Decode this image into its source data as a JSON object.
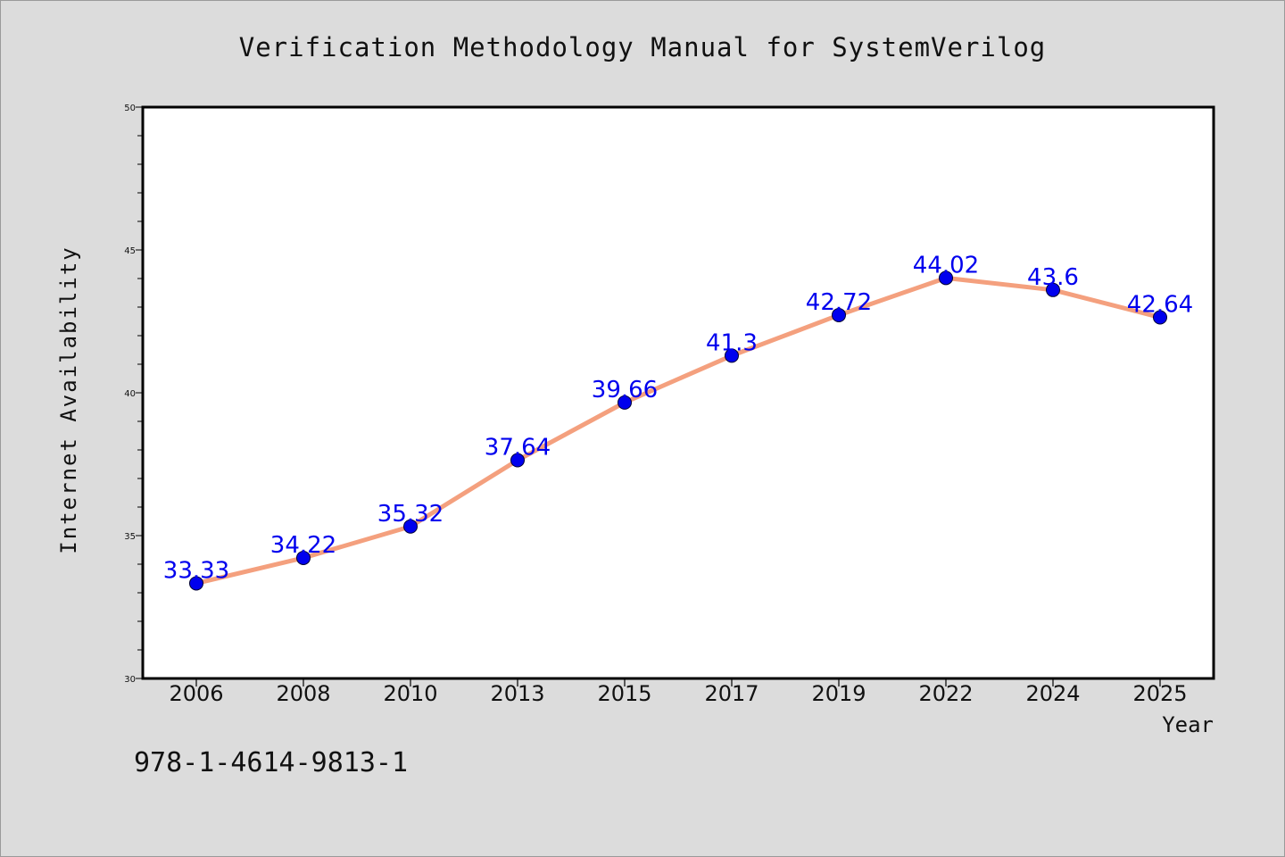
{
  "chart_data": {
    "type": "line",
    "title": "Verification Methodology Manual for SystemVerilog",
    "xlabel": "Year",
    "ylabel": "Internet Availability",
    "categories": [
      "2006",
      "2008",
      "2010",
      "2013",
      "2015",
      "2017",
      "2019",
      "2022",
      "2024",
      "2025"
    ],
    "series": [
      {
        "values": [
          33.33,
          34.22,
          35.32,
          37.64,
          39.66,
          41.3,
          42.72,
          44.02,
          43.6,
          42.64
        ]
      }
    ],
    "data_labels": [
      "33.33",
      "34.22",
      "35.32",
      "37.64",
      "39.66",
      "41.3",
      "42.72",
      "44.02",
      "43.6",
      "42.64"
    ],
    "ylim": [
      30,
      50
    ],
    "yticks": [
      "30",
      "35",
      "40",
      "45",
      "50"
    ],
    "grid": false,
    "legend": "none",
    "colors": {
      "line": "#f4a07e",
      "marker": "#0000ee",
      "label": "#0000ee",
      "background": "#dcdcdc",
      "plot_area": "#ffffff"
    }
  },
  "footer": {
    "isbn": "978-1-4614-9813-1"
  }
}
